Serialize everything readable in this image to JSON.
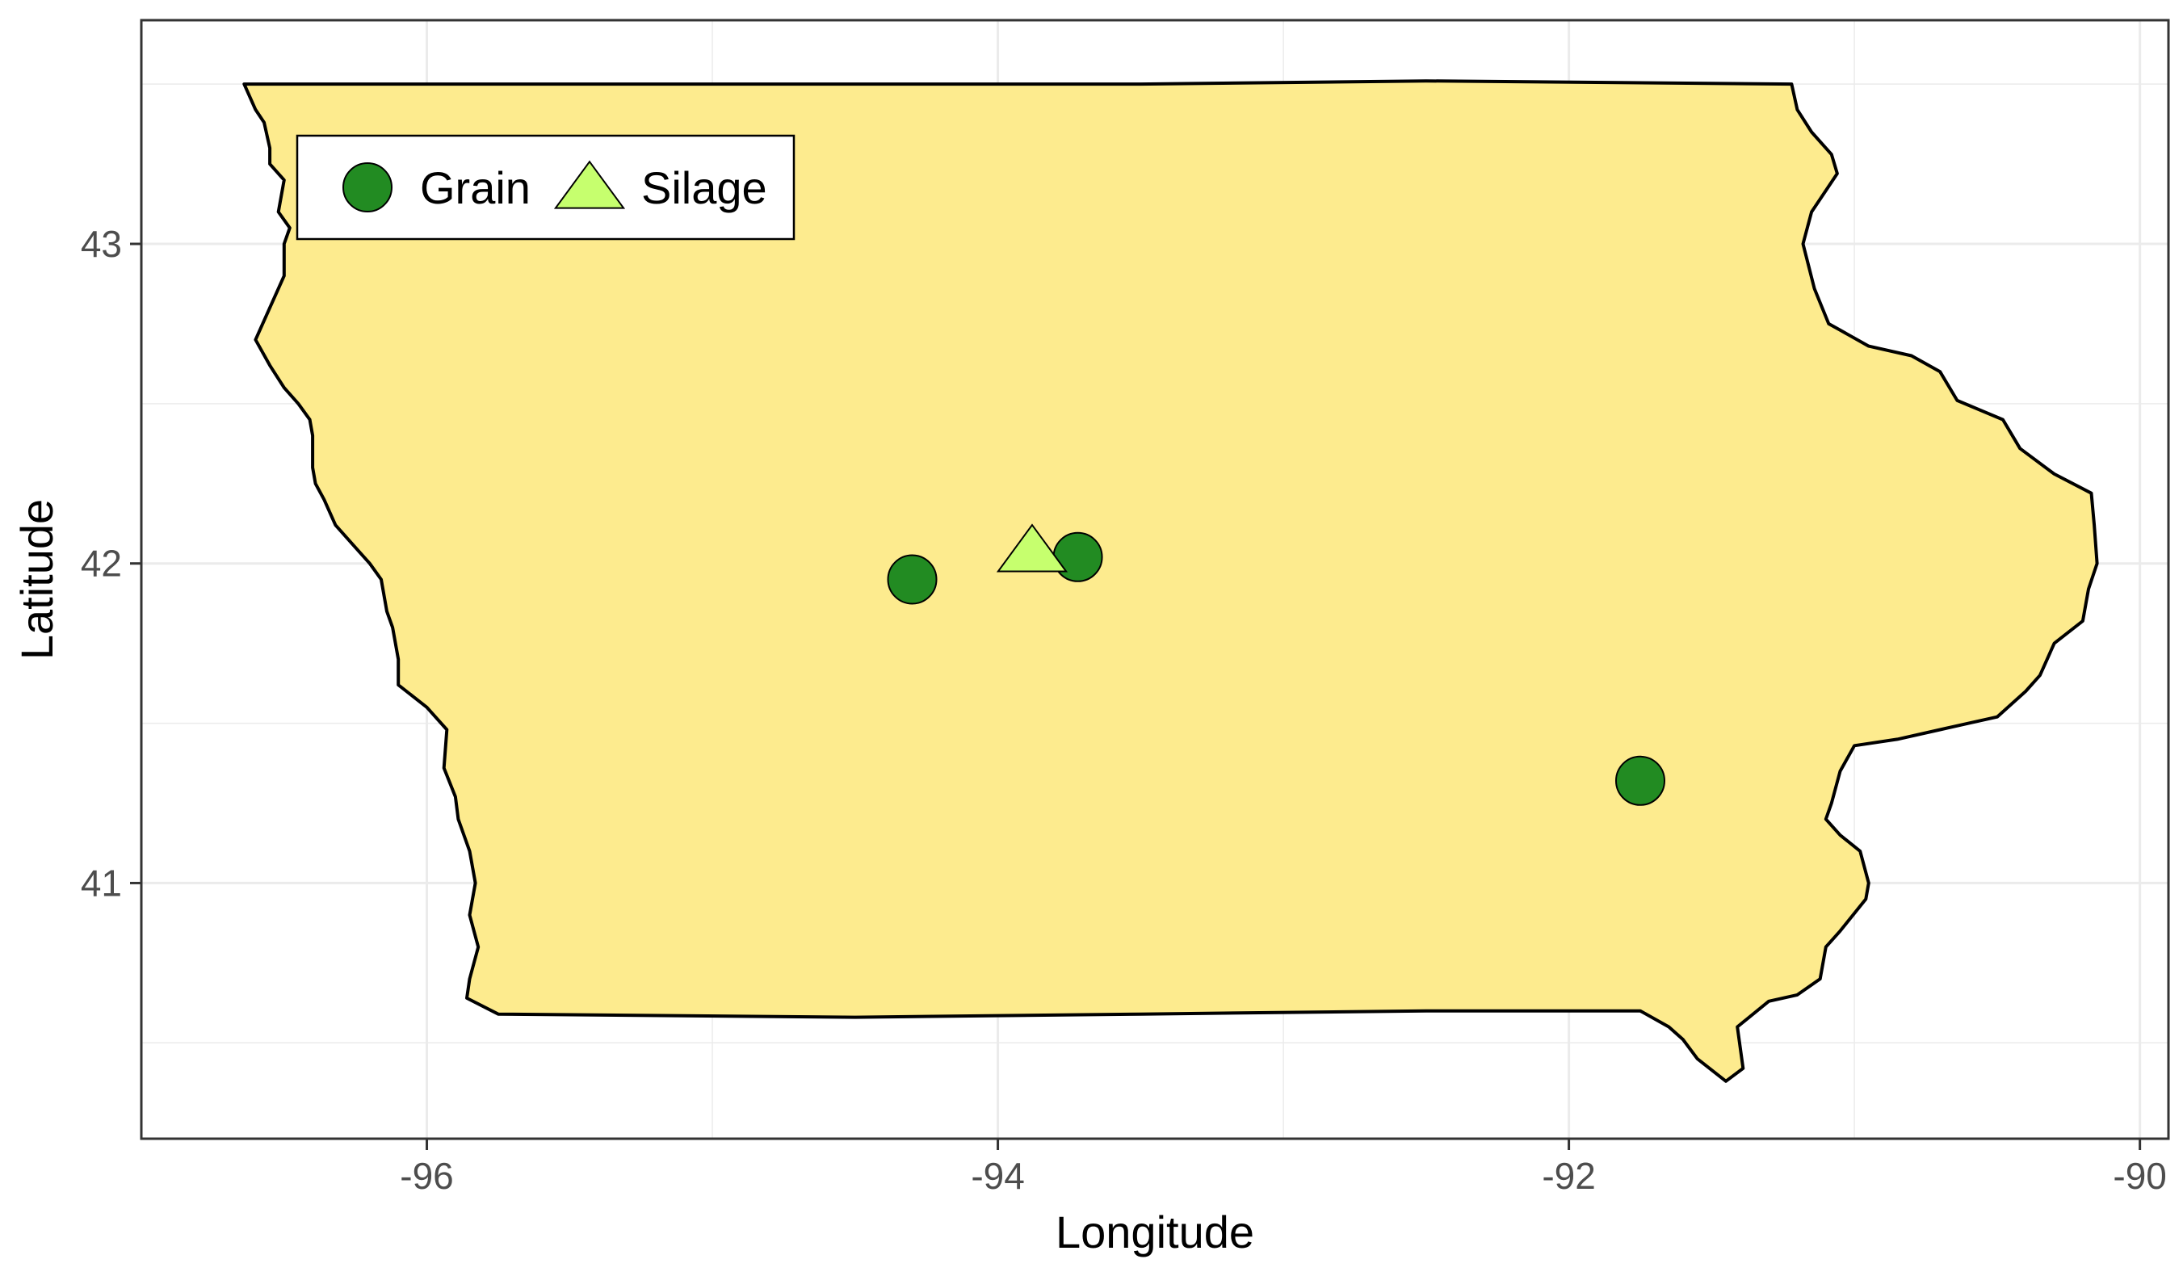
{
  "map": {
    "region": "Iowa",
    "fill_color": "#FDEB8E",
    "border_color": "#000000",
    "background_color": "#FFFFFF",
    "grid_color": "#EBEBEB",
    "panel_border_color": "#333333"
  },
  "chart_data": {
    "type": "scatter",
    "title": "",
    "xlabel": "Longitude",
    "ylabel": "Latitude",
    "xlim": [
      -97.0,
      -89.9
    ],
    "ylim": [
      40.2,
      43.7
    ],
    "grid": true,
    "legend_position": "top-left",
    "x_ticks": [
      {
        "value": -96,
        "label": "-96"
      },
      {
        "value": -94,
        "label": "-94"
      },
      {
        "value": -92,
        "label": "-92"
      },
      {
        "value": -90,
        "label": "-90"
      }
    ],
    "y_ticks": [
      {
        "value": 41,
        "label": "41"
      },
      {
        "value": 42,
        "label": "42"
      },
      {
        "value": 43,
        "label": "43"
      }
    ],
    "x_minor": [
      -97,
      -95,
      -93,
      -91
    ],
    "y_minor": [
      40.5,
      41.5,
      42.5,
      43.5
    ],
    "series": [
      {
        "name": "Grain",
        "shape": "circle",
        "color": "#228B22",
        "points": [
          {
            "x": -94.3,
            "y": 41.95
          },
          {
            "x": -93.72,
            "y": 42.02
          },
          {
            "x": -91.75,
            "y": 41.32
          }
        ]
      },
      {
        "name": "Silage",
        "shape": "triangle",
        "color": "#C6FF6E",
        "points": [
          {
            "x": -93.88,
            "y": 42.04
          }
        ]
      }
    ],
    "boundary": [
      [
        -96.64,
        43.5
      ],
      [
        -95.5,
        43.5
      ],
      [
        -94.5,
        43.5
      ],
      [
        -93.5,
        43.5
      ],
      [
        -92.5,
        43.51
      ],
      [
        -91.22,
        43.5
      ],
      [
        -91.2,
        43.42
      ],
      [
        -91.15,
        43.35
      ],
      [
        -91.08,
        43.28
      ],
      [
        -91.06,
        43.22
      ],
      [
        -91.15,
        43.1
      ],
      [
        -91.18,
        43.0
      ],
      [
        -91.14,
        42.86
      ],
      [
        -91.09,
        42.75
      ],
      [
        -91.05,
        42.73
      ],
      [
        -90.95,
        42.68
      ],
      [
        -90.8,
        42.65
      ],
      [
        -90.7,
        42.6
      ],
      [
        -90.64,
        42.51
      ],
      [
        -90.48,
        42.45
      ],
      [
        -90.42,
        42.36
      ],
      [
        -90.3,
        42.28
      ],
      [
        -90.17,
        42.22
      ],
      [
        -90.16,
        42.12
      ],
      [
        -90.15,
        42.0
      ],
      [
        -90.18,
        41.92
      ],
      [
        -90.2,
        41.82
      ],
      [
        -90.3,
        41.75
      ],
      [
        -90.35,
        41.65
      ],
      [
        -90.4,
        41.6
      ],
      [
        -90.5,
        41.52
      ],
      [
        -90.6,
        41.5
      ],
      [
        -90.7,
        41.48
      ],
      [
        -90.85,
        41.45
      ],
      [
        -91.0,
        41.43
      ],
      [
        -91.05,
        41.35
      ],
      [
        -91.08,
        41.25
      ],
      [
        -91.1,
        41.2
      ],
      [
        -91.05,
        41.15
      ],
      [
        -90.98,
        41.1
      ],
      [
        -90.95,
        41.0
      ],
      [
        -90.96,
        40.95
      ],
      [
        -91.05,
        40.85
      ],
      [
        -91.1,
        40.8
      ],
      [
        -91.12,
        40.7
      ],
      [
        -91.2,
        40.65
      ],
      [
        -91.3,
        40.63
      ],
      [
        -91.41,
        40.55
      ],
      [
        -91.39,
        40.42
      ],
      [
        -91.45,
        40.38
      ],
      [
        -91.55,
        40.45
      ],
      [
        -91.6,
        40.51
      ],
      [
        -91.65,
        40.55
      ],
      [
        -91.75,
        40.6
      ],
      [
        -92.5,
        40.6
      ],
      [
        -93.5,
        40.59
      ],
      [
        -94.5,
        40.58
      ],
      [
        -95.75,
        40.59
      ],
      [
        -95.86,
        40.64
      ],
      [
        -95.85,
        40.7
      ],
      [
        -95.82,
        40.8
      ],
      [
        -95.85,
        40.9
      ],
      [
        -95.83,
        41.0
      ],
      [
        -95.85,
        41.1
      ],
      [
        -95.89,
        41.2
      ],
      [
        -95.9,
        41.27
      ],
      [
        -95.94,
        41.36
      ],
      [
        -95.93,
        41.48
      ],
      [
        -96.0,
        41.55
      ],
      [
        -96.1,
        41.62
      ],
      [
        -96.1,
        41.7
      ],
      [
        -96.12,
        41.8
      ],
      [
        -96.14,
        41.85
      ],
      [
        -96.16,
        41.95
      ],
      [
        -96.2,
        42.0
      ],
      [
        -96.25,
        42.05
      ],
      [
        -96.32,
        42.12
      ],
      [
        -96.36,
        42.2
      ],
      [
        -96.39,
        42.25
      ],
      [
        -96.4,
        42.3
      ],
      [
        -96.4,
        42.35
      ],
      [
        -96.4,
        42.4
      ],
      [
        -96.41,
        42.45
      ],
      [
        -96.45,
        42.5
      ],
      [
        -96.5,
        42.55
      ],
      [
        -96.55,
        42.62
      ],
      [
        -96.6,
        42.7
      ],
      [
        -96.55,
        42.8
      ],
      [
        -96.5,
        42.9
      ],
      [
        -96.5,
        43.0
      ],
      [
        -96.48,
        43.05
      ],
      [
        -96.52,
        43.1
      ],
      [
        -96.5,
        43.2
      ],
      [
        -96.55,
        43.25
      ],
      [
        -96.55,
        43.3
      ],
      [
        -96.57,
        43.38
      ],
      [
        -96.6,
        43.42
      ],
      [
        -96.64,
        43.5
      ]
    ]
  }
}
